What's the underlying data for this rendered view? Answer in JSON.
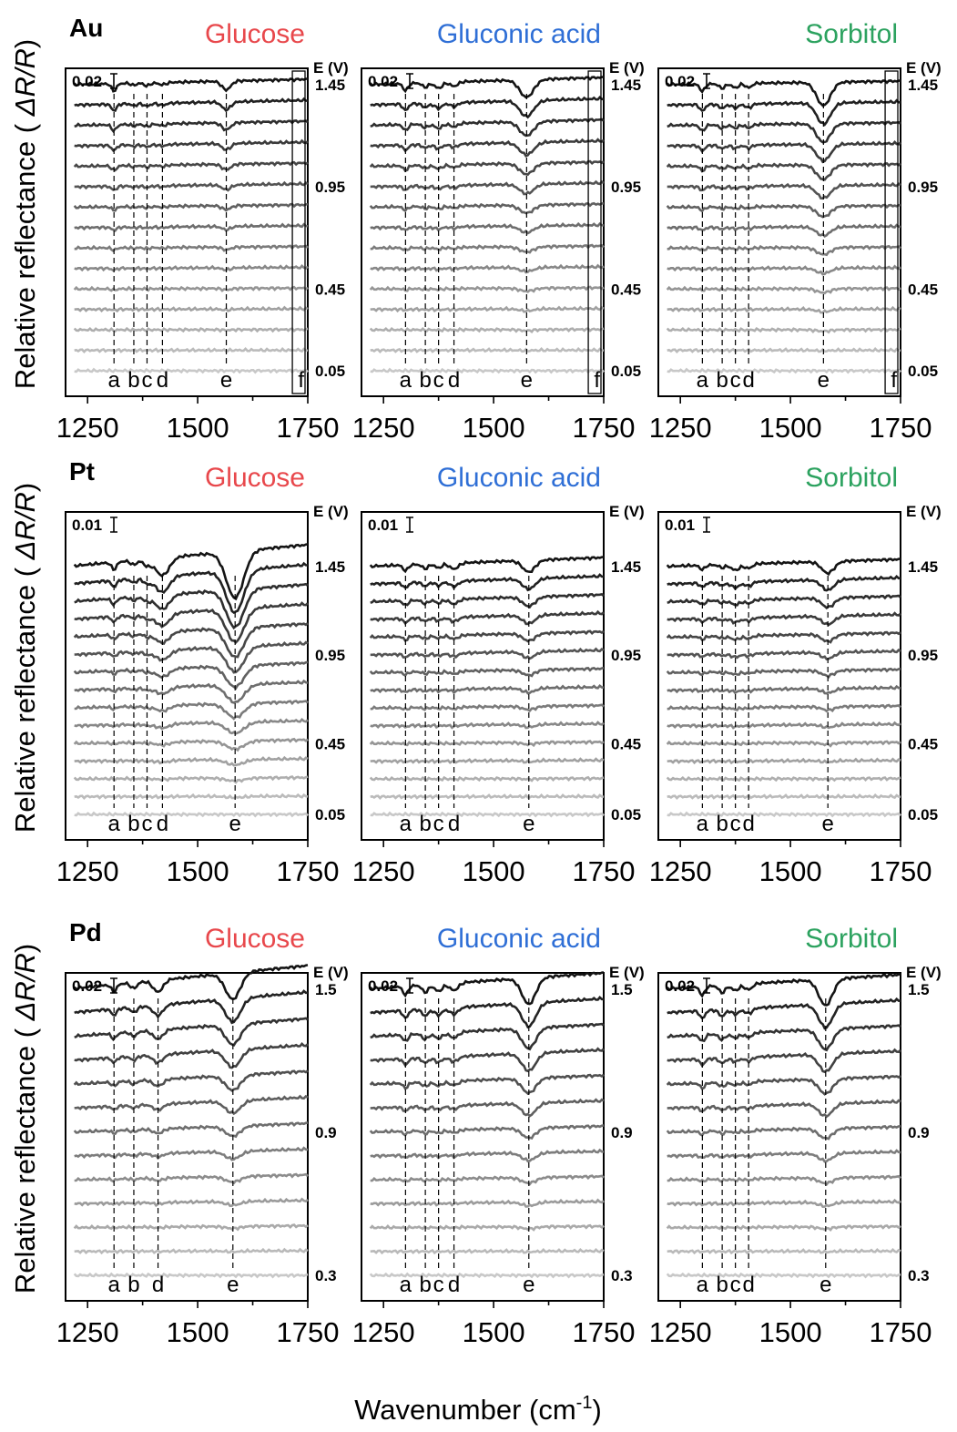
{
  "figure": {
    "ylabel_prefix": "Relative reflectance ( ",
    "ylabel_var": "ΔR/R",
    "ylabel_suffix": ")",
    "xlabel": "Wavenumber (cm",
    "xlabel_sup": "-1",
    "xlabel_close": ")",
    "analyte_colors": {
      "Glucose": "#e8484c",
      "Gluconic acid": "#2f6fd6",
      "Sorbitol": "#2ca25f"
    }
  },
  "chart_data": [
    {
      "type": "line",
      "metal": "Au",
      "title": "Glucose",
      "scale_bar": "0.02",
      "e_unit": "E (V)",
      "e_ticks": [
        "1.45",
        "0.95",
        "0.45",
        "0.05"
      ],
      "xlim": [
        1200,
        1750
      ],
      "xticks": [
        "1250",
        "1500",
        "1750"
      ],
      "peaks": [
        {
          "label": "a",
          "x": 1310
        },
        {
          "label": "b",
          "x": 1355
        },
        {
          "label": "c",
          "x": 1385
        },
        {
          "label": "d",
          "x": 1420
        },
        {
          "label": "e",
          "x": 1565
        },
        {
          "label": "f",
          "x": 1735
        }
      ],
      "box_f": true,
      "n_spectra": 15,
      "bands": [
        {
          "x": 1310,
          "d": 0.5,
          "w": 8
        },
        {
          "x": 1355,
          "d": 0.15,
          "w": 8
        },
        {
          "x": 1385,
          "d": 0.2,
          "w": 10
        },
        {
          "x": 1420,
          "d": 0.15,
          "w": 12
        },
        {
          "x": 1565,
          "d": 0.6,
          "w": 14
        }
      ],
      "slope": 0.3
    },
    {
      "type": "line",
      "metal": "Au",
      "title": "Gluconic acid",
      "scale_bar": "0.02",
      "e_unit": "E (V)",
      "e_ticks": [
        "1.45",
        "0.95",
        "0.45",
        "0.05"
      ],
      "xlim": [
        1200,
        1750
      ],
      "xticks": [
        "1250",
        "1500",
        "1750"
      ],
      "peaks": [
        {
          "label": "a",
          "x": 1300
        },
        {
          "label": "b",
          "x": 1345
        },
        {
          "label": "c",
          "x": 1375
        },
        {
          "label": "d",
          "x": 1410
        },
        {
          "label": "e",
          "x": 1575
        },
        {
          "label": "f",
          "x": 1735
        }
      ],
      "box_f": true,
      "n_spectra": 15,
      "bands": [
        {
          "x": 1300,
          "d": 0.5,
          "w": 8
        },
        {
          "x": 1345,
          "d": 0.3,
          "w": 10
        },
        {
          "x": 1375,
          "d": 0.4,
          "w": 12
        },
        {
          "x": 1410,
          "d": 0.3,
          "w": 12
        },
        {
          "x": 1575,
          "d": 1.2,
          "w": 22
        }
      ],
      "slope": 0.4
    },
    {
      "type": "line",
      "metal": "Au",
      "title": "Sorbitol",
      "scale_bar": "0.02",
      "e_unit": "E (V)",
      "e_ticks": [
        "1.45",
        "0.95",
        "0.45",
        "0.05"
      ],
      "xlim": [
        1200,
        1750
      ],
      "xticks": [
        "1250",
        "1500",
        "1750"
      ],
      "peaks": [
        {
          "label": "a",
          "x": 1300
        },
        {
          "label": "b",
          "x": 1345
        },
        {
          "label": "c",
          "x": 1375
        },
        {
          "label": "d",
          "x": 1405
        },
        {
          "label": "e",
          "x": 1575
        },
        {
          "label": "f",
          "x": 1735
        }
      ],
      "box_f": true,
      "n_spectra": 15,
      "bands": [
        {
          "x": 1300,
          "d": 0.5,
          "w": 8
        },
        {
          "x": 1345,
          "d": 0.3,
          "w": 10
        },
        {
          "x": 1375,
          "d": 0.3,
          "w": 10
        },
        {
          "x": 1405,
          "d": 0.3,
          "w": 10
        },
        {
          "x": 1575,
          "d": 1.6,
          "w": 22
        }
      ],
      "slope": 0.2
    },
    {
      "type": "line",
      "metal": "Pt",
      "title": "Glucose",
      "scale_bar": "0.01",
      "e_unit": "E (V)",
      "e_ticks": [
        "1.45",
        "0.95",
        "0.45",
        "0.05"
      ],
      "xlim": [
        1200,
        1750
      ],
      "xticks": [
        "1250",
        "1500",
        "1750"
      ],
      "peaks": [
        {
          "label": "a",
          "x": 1310
        },
        {
          "label": "b",
          "x": 1355
        },
        {
          "label": "c",
          "x": 1385
        },
        {
          "label": "d",
          "x": 1420
        },
        {
          "label": "e",
          "x": 1585
        }
      ],
      "box_f": false,
      "n_spectra": 15,
      "bands": [
        {
          "x": 1310,
          "d": 0.5,
          "w": 8
        },
        {
          "x": 1355,
          "d": 0.3,
          "w": 10
        },
        {
          "x": 1385,
          "d": 0.4,
          "w": 12
        },
        {
          "x": 1420,
          "d": 1.2,
          "w": 22
        },
        {
          "x": 1585,
          "d": 3.2,
          "w": 28
        }
      ],
      "slope": 1.2
    },
    {
      "type": "line",
      "metal": "Pt",
      "title": "Gluconic acid",
      "scale_bar": "0.01",
      "e_unit": "E (V)",
      "e_ticks": [
        "1.45",
        "0.95",
        "0.45",
        "0.05"
      ],
      "xlim": [
        1200,
        1750
      ],
      "xticks": [
        "1250",
        "1500",
        "1750"
      ],
      "peaks": [
        {
          "label": "a",
          "x": 1300
        },
        {
          "label": "b",
          "x": 1345
        },
        {
          "label": "c",
          "x": 1375
        },
        {
          "label": "d",
          "x": 1410
        },
        {
          "label": "e",
          "x": 1580
        }
      ],
      "box_f": false,
      "n_spectra": 15,
      "bands": [
        {
          "x": 1300,
          "d": 0.4,
          "w": 8
        },
        {
          "x": 1345,
          "d": 0.3,
          "w": 10
        },
        {
          "x": 1375,
          "d": 0.3,
          "w": 10
        },
        {
          "x": 1410,
          "d": 0.4,
          "w": 14
        },
        {
          "x": 1580,
          "d": 0.8,
          "w": 20
        }
      ],
      "slope": 0.5
    },
    {
      "type": "line",
      "metal": "Pt",
      "title": "Sorbitol",
      "scale_bar": "0.01",
      "e_unit": "E (V)",
      "e_ticks": [
        "1.45",
        "0.95",
        "0.45",
        "0.05"
      ],
      "xlim": [
        1200,
        1750
      ],
      "xticks": [
        "1250",
        "1500",
        "1750"
      ],
      "peaks": [
        {
          "label": "a",
          "x": 1300
        },
        {
          "label": "b",
          "x": 1345
        },
        {
          "label": "c",
          "x": 1375
        },
        {
          "label": "d",
          "x": 1405
        },
        {
          "label": "e",
          "x": 1585
        }
      ],
      "box_f": false,
      "n_spectra": 15,
      "bands": [
        {
          "x": 1300,
          "d": 0.3,
          "w": 8
        },
        {
          "x": 1345,
          "d": 0.2,
          "w": 10
        },
        {
          "x": 1375,
          "d": 0.4,
          "w": 14
        },
        {
          "x": 1405,
          "d": 0.3,
          "w": 12
        },
        {
          "x": 1585,
          "d": 0.8,
          "w": 20
        }
      ],
      "slope": 0.4
    },
    {
      "type": "line",
      "metal": "Pd",
      "title": "Glucose",
      "scale_bar": "0.02",
      "e_unit": "E (V)",
      "e_ticks": [
        "1.5",
        "0.9",
        "0.3"
      ],
      "xlim": [
        1200,
        1750
      ],
      "xticks": [
        "1250",
        "1500",
        "1750"
      ],
      "peaks": [
        {
          "label": "a",
          "x": 1310
        },
        {
          "label": "b",
          "x": 1355
        },
        {
          "label": "d",
          "x": 1410
        },
        {
          "label": "e",
          "x": 1580
        }
      ],
      "box_f": false,
      "n_spectra": 13,
      "bands": [
        {
          "x": 1310,
          "d": 0.5,
          "w": 8
        },
        {
          "x": 1355,
          "d": 0.4,
          "w": 10
        },
        {
          "x": 1410,
          "d": 0.8,
          "w": 16
        },
        {
          "x": 1580,
          "d": 1.8,
          "w": 24
        }
      ],
      "slope": 1.3
    },
    {
      "type": "line",
      "metal": "Pd",
      "title": "Gluconic acid",
      "scale_bar": "0.02",
      "e_unit": "E (V)",
      "e_ticks": [
        "1.5",
        "0.9",
        "0.3"
      ],
      "xlim": [
        1200,
        1750
      ],
      "xticks": [
        "1250",
        "1500",
        "1750"
      ],
      "peaks": [
        {
          "label": "a",
          "x": 1300
        },
        {
          "label": "b",
          "x": 1345
        },
        {
          "label": "c",
          "x": 1375
        },
        {
          "label": "d",
          "x": 1410
        },
        {
          "label": "e",
          "x": 1580
        }
      ],
      "box_f": false,
      "n_spectra": 13,
      "bands": [
        {
          "x": 1300,
          "d": 0.6,
          "w": 8
        },
        {
          "x": 1345,
          "d": 0.5,
          "w": 10
        },
        {
          "x": 1375,
          "d": 0.5,
          "w": 12
        },
        {
          "x": 1410,
          "d": 0.5,
          "w": 14
        },
        {
          "x": 1580,
          "d": 1.8,
          "w": 22
        }
      ],
      "slope": 0.9
    },
    {
      "type": "line",
      "metal": "Pd",
      "title": "Sorbitol",
      "scale_bar": "0.02",
      "e_unit": "E (V)",
      "e_ticks": [
        "1.5",
        "0.9",
        "0.3"
      ],
      "xlim": [
        1200,
        1750
      ],
      "xticks": [
        "1250",
        "1500",
        "1750"
      ],
      "peaks": [
        {
          "label": "a",
          "x": 1300
        },
        {
          "label": "b",
          "x": 1345
        },
        {
          "label": "c",
          "x": 1375
        },
        {
          "label": "d",
          "x": 1405
        },
        {
          "label": "e",
          "x": 1580
        }
      ],
      "box_f": false,
      "n_spectra": 13,
      "bands": [
        {
          "x": 1300,
          "d": 0.6,
          "w": 8
        },
        {
          "x": 1345,
          "d": 0.5,
          "w": 10
        },
        {
          "x": 1375,
          "d": 0.4,
          "w": 12
        },
        {
          "x": 1405,
          "d": 0.4,
          "w": 12
        },
        {
          "x": 1580,
          "d": 1.8,
          "w": 22
        }
      ],
      "slope": 0.8
    }
  ]
}
